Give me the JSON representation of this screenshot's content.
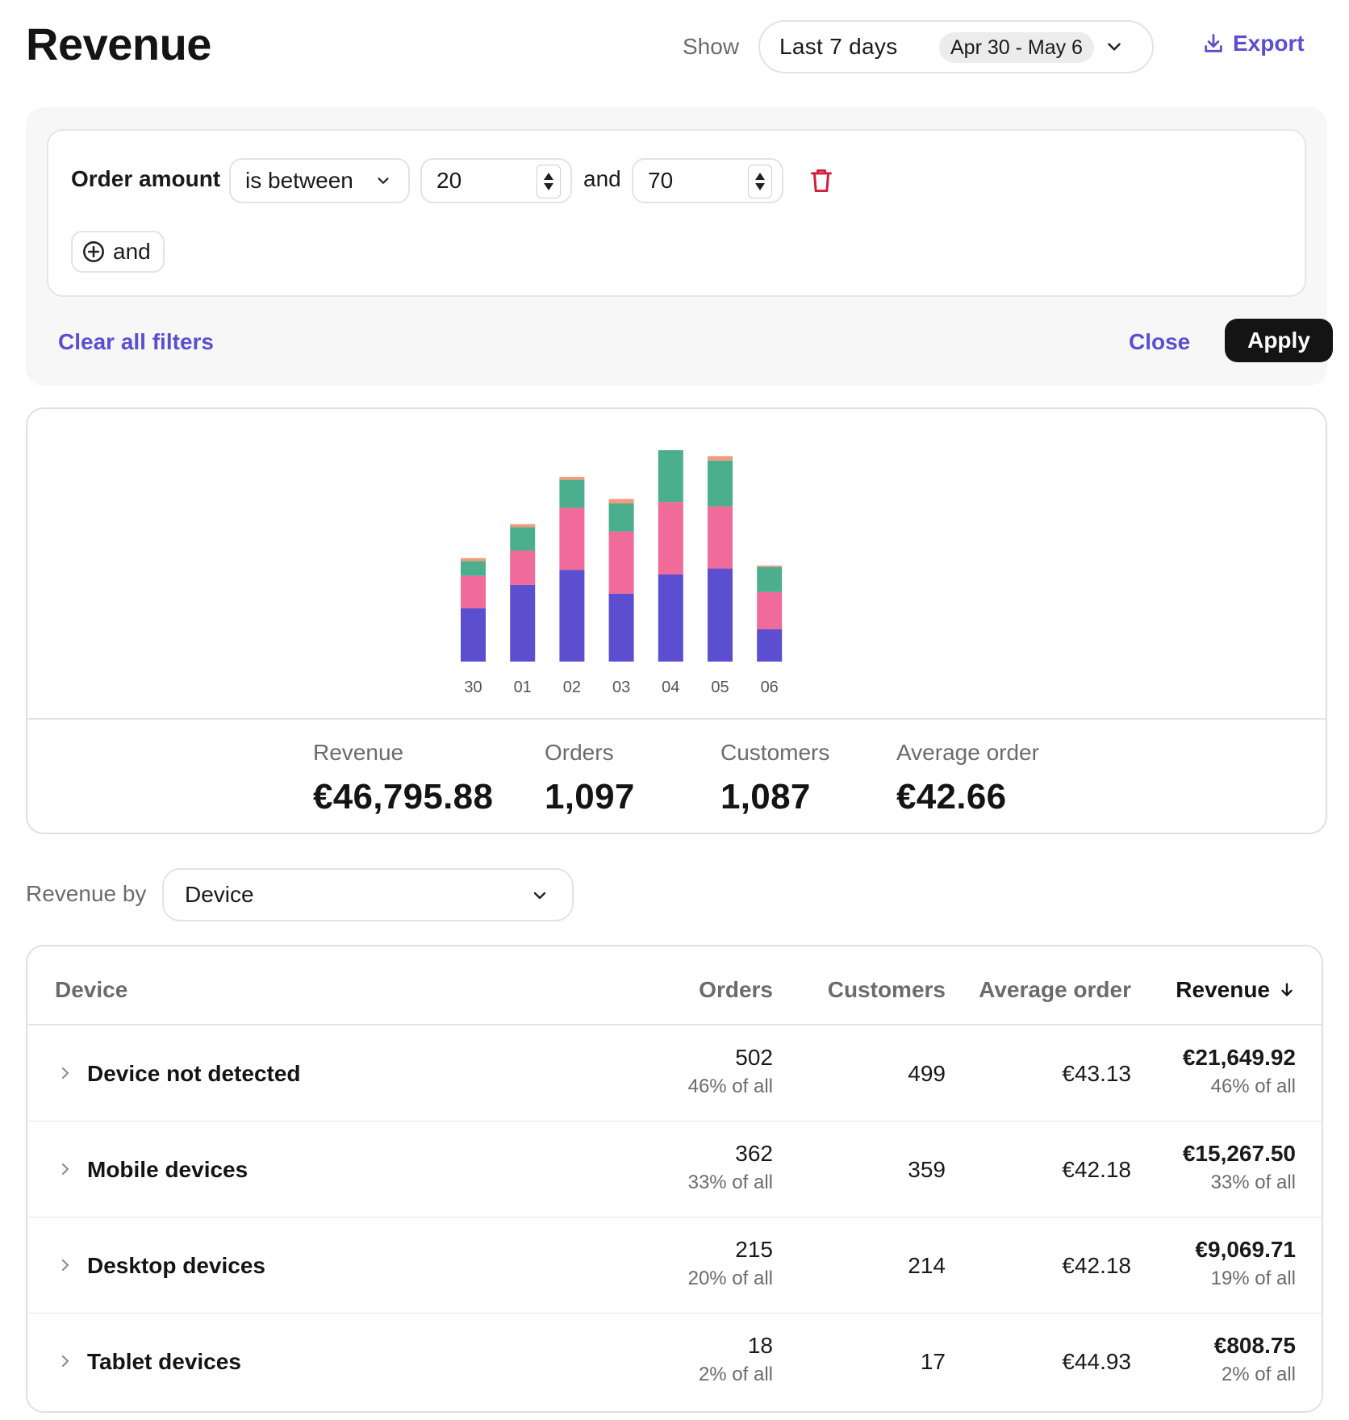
{
  "header": {
    "title": "Revenue",
    "show_label": "Show",
    "range_label": "Last 7 days",
    "range_dates": "Apr 30 - May 6",
    "export_label": "Export"
  },
  "filter": {
    "field": "Order amount",
    "operator": "is between",
    "min_value": "20",
    "and_text": "and",
    "max_value": "70",
    "add_label": "and",
    "clear_label": "Clear all filters",
    "close_label": "Close",
    "apply_label": "Apply"
  },
  "colors": {
    "accent": "#5b4fcf",
    "danger": "#d21f3c",
    "series": [
      "#5b4fcf",
      "#f06b99",
      "#4bae8c",
      "#f39a7f"
    ]
  },
  "chart_data": {
    "type": "bar",
    "stacked": true,
    "categories": [
      "30",
      "01",
      "02",
      "03",
      "04",
      "05",
      "06"
    ],
    "series": [
      {
        "values": [
          3.6,
          5.2,
          6.2,
          4.6,
          5.9,
          6.3,
          2.2
        ]
      },
      {
        "values": [
          2.2,
          2.3,
          4.2,
          4.2,
          4.9,
          4.2,
          2.5
        ]
      },
      {
        "values": [
          1.0,
          1.6,
          1.9,
          1.9,
          3.5,
          3.1,
          1.7
        ]
      },
      {
        "values": [
          0.2,
          0.2,
          0.2,
          0.3,
          0.0,
          0.3,
          0.1
        ]
      }
    ],
    "ylim": [
      0,
      14.3
    ],
    "grid": false,
    "legend": false
  },
  "stats": [
    {
      "label": "Revenue",
      "value": "€46,795.88"
    },
    {
      "label": "Orders",
      "value": "1,097"
    },
    {
      "label": "Customers",
      "value": "1,087"
    },
    {
      "label": "Average order",
      "value": "€42.66"
    }
  ],
  "breakdown": {
    "label": "Revenue by",
    "selected": "Device"
  },
  "table": {
    "headers": {
      "device": "Device",
      "orders": "Orders",
      "customers": "Customers",
      "average_order": "Average order",
      "revenue": "Revenue"
    },
    "rows": [
      {
        "name": "Device not detected",
        "orders": "502",
        "orders_share": "46% of all",
        "customers": "499",
        "average_order": "€43.13",
        "revenue": "€21,649.92",
        "revenue_share": "46% of all"
      },
      {
        "name": "Mobile devices",
        "orders": "362",
        "orders_share": "33% of all",
        "customers": "359",
        "average_order": "€42.18",
        "revenue": "€15,267.50",
        "revenue_share": "33% of all"
      },
      {
        "name": "Desktop devices",
        "orders": "215",
        "orders_share": "20% of all",
        "customers": "214",
        "average_order": "€42.18",
        "revenue": "€9,069.71",
        "revenue_share": "19% of all"
      },
      {
        "name": "Tablet devices",
        "orders": "18",
        "orders_share": "2% of all",
        "customers": "17",
        "average_order": "€44.93",
        "revenue": "€808.75",
        "revenue_share": "2% of all"
      }
    ]
  }
}
